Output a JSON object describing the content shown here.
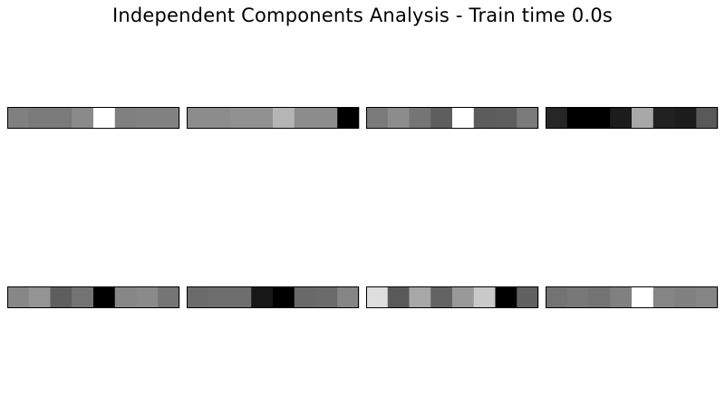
{
  "title": "Independent Components Analysis - Train time 0.0s",
  "chart_data": {
    "type": "heatmap",
    "title": "Independent Components Analysis - Train time 0.0s",
    "colormap": "gray",
    "grid": false,
    "axes_ticks": false,
    "layout": {
      "rows": 2,
      "cols": 4
    },
    "components": [
      {
        "values": [
          0.5,
          0.48,
          0.48,
          0.54,
          1.0,
          0.5,
          0.51,
          0.51
        ]
      },
      {
        "values": [
          0.55,
          0.55,
          0.57,
          0.57,
          0.71,
          0.55,
          0.55,
          0.0
        ]
      },
      {
        "values": [
          0.48,
          0.55,
          0.46,
          0.37,
          1.0,
          0.36,
          0.37,
          0.48
        ]
      },
      {
        "values": [
          0.15,
          0.0,
          0.0,
          0.11,
          0.66,
          0.13,
          0.11,
          0.35
        ]
      },
      {
        "values": [
          0.53,
          0.58,
          0.37,
          0.45,
          0.0,
          0.53,
          0.54,
          0.46
        ]
      },
      {
        "values": [
          0.42,
          0.43,
          0.43,
          0.09,
          0.0,
          0.41,
          0.42,
          0.52
        ]
      },
      {
        "values": [
          0.87,
          0.35,
          0.66,
          0.39,
          0.6,
          0.79,
          0.0,
          0.38
        ]
      },
      {
        "values": [
          0.45,
          0.47,
          0.45,
          0.5,
          1.0,
          0.52,
          0.5,
          0.52
        ]
      }
    ]
  }
}
